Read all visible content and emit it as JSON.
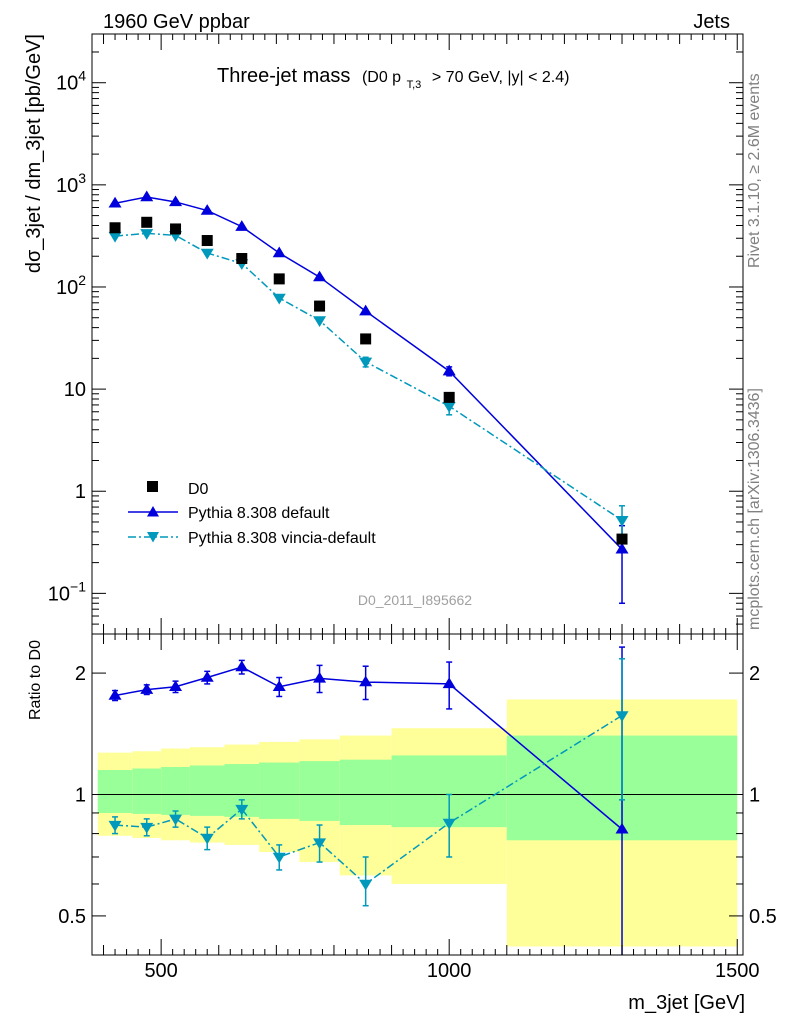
{
  "header": {
    "left": "1960 GeV ppbar",
    "right": "Jets"
  },
  "plot_title": {
    "main": "Three-jet mass",
    "sub_prefix": "(D0 p",
    "sub_subscript": "T,3",
    "sub_suffix": "> 70 GeV, |y| < 2.4)"
  },
  "side_labels": {
    "rivet": "Rivet 3.1.10, ≥ 2.6M events",
    "mcplots": "mcplots.cern.ch [arXiv:1306.3436]"
  },
  "analysis_id": "D0_2011_I895662",
  "colors": {
    "pythia_default": "#0000dd",
    "pythia_vincia": "#0099bb",
    "band_inner": "#99ff99",
    "band_outer": "#ffff99",
    "data": "#000000"
  },
  "chart_data": [
    {
      "type": "scatter",
      "panel": "main",
      "ylabel": "dσ_3jet / dm_3jet [pb/GeV]",
      "yscale": "log",
      "ylim": [
        0.04,
        30000
      ],
      "xlim": [
        380,
        1510
      ],
      "y_tick_labels": [
        "10^-1",
        "1",
        "10",
        "10^2",
        "10^3",
        "10^4"
      ],
      "legend_position": "lower-left",
      "series": [
        {
          "name": "D0",
          "marker": "square",
          "x": [
            420,
            475,
            525,
            580,
            640,
            705,
            775,
            855,
            1000,
            1300
          ],
          "y": [
            380,
            430,
            370,
            285,
            190,
            120,
            65,
            31,
            8.3,
            0.34
          ]
        },
        {
          "name": "Pythia 8.308 default",
          "marker": "triangle-up",
          "line": "solid",
          "x": [
            420,
            475,
            525,
            580,
            640,
            705,
            775,
            855,
            1000,
            1300
          ],
          "y": [
            660,
            760,
            680,
            560,
            390,
            215,
            125,
            58,
            15,
            0.27
          ],
          "err_lo": [
            0,
            0,
            0,
            0,
            0,
            0,
            0,
            0,
            1.5,
            0.19
          ],
          "err_hi": [
            0,
            0,
            0,
            0,
            0,
            0,
            0,
            0,
            1.5,
            0.19
          ]
        },
        {
          "name": "Pythia 8.308 vincia-default",
          "marker": "triangle-down",
          "line": "dashdot",
          "x": [
            420,
            475,
            525,
            580,
            640,
            705,
            775,
            855,
            1000,
            1300
          ],
          "y": [
            315,
            335,
            320,
            215,
            170,
            78,
            47,
            18.5,
            6.8,
            0.52
          ],
          "err_lo": [
            0,
            0,
            0,
            0,
            0,
            0,
            0,
            2,
            1.2,
            0.2
          ],
          "err_hi": [
            0,
            0,
            0,
            0,
            0,
            0,
            0,
            2,
            1.2,
            0.2
          ]
        }
      ]
    },
    {
      "type": "scatter",
      "panel": "ratio",
      "xlabel": "m_3jet [GeV]",
      "ylabel": "Ratio to D0",
      "yscale": "log",
      "ylim": [
        0.4,
        2.5
      ],
      "xlim": [
        380,
        1510
      ],
      "x_ticks": [
        500,
        1000,
        1500
      ],
      "y_ticks": [
        0.5,
        1,
        2
      ],
      "bands": {
        "edges": [
          390,
          450,
          500,
          550,
          610,
          670,
          740,
          810,
          900,
          1100,
          1500
        ],
        "inner_lo": [
          0.9,
          0.895,
          0.89,
          0.885,
          0.88,
          0.87,
          0.86,
          0.84,
          0.83,
          0.77
        ],
        "inner_hi": [
          1.15,
          1.16,
          1.17,
          1.18,
          1.19,
          1.2,
          1.21,
          1.22,
          1.25,
          1.4
        ],
        "outer_lo": [
          0.79,
          0.78,
          0.77,
          0.76,
          0.75,
          0.72,
          0.68,
          0.63,
          0.6,
          0.42
        ],
        "outer_hi": [
          1.27,
          1.28,
          1.3,
          1.31,
          1.33,
          1.35,
          1.37,
          1.4,
          1.46,
          1.72
        ]
      },
      "series": [
        {
          "name": "Pythia 8.308 default",
          "x": [
            420,
            475,
            525,
            580,
            640,
            705,
            775,
            855,
            1000,
            1300
          ],
          "y": [
            1.76,
            1.82,
            1.85,
            1.95,
            2.07,
            1.85,
            1.94,
            1.9,
            1.88,
            0.82
          ],
          "err_lo": [
            0.05,
            0.05,
            0.06,
            0.07,
            0.08,
            0.1,
            0.15,
            0.18,
            0.25,
            0.5
          ],
          "err_hi": [
            0.05,
            0.05,
            0.06,
            0.07,
            0.08,
            0.1,
            0.15,
            0.18,
            0.25,
            1.5
          ]
        },
        {
          "name": "Pythia 8.308 vincia-default",
          "x": [
            420,
            475,
            525,
            580,
            640,
            705,
            775,
            855,
            1000,
            1300
          ],
          "y": [
            0.84,
            0.83,
            0.87,
            0.78,
            0.92,
            0.7,
            0.76,
            0.6,
            0.85,
            1.57
          ],
          "err_lo": [
            0.04,
            0.04,
            0.04,
            0.05,
            0.05,
            0.05,
            0.08,
            0.07,
            0.15,
            0.6
          ],
          "err_hi": [
            0.04,
            0.04,
            0.04,
            0.05,
            0.05,
            0.05,
            0.08,
            0.1,
            0.15,
            0.6
          ]
        }
      ]
    }
  ]
}
